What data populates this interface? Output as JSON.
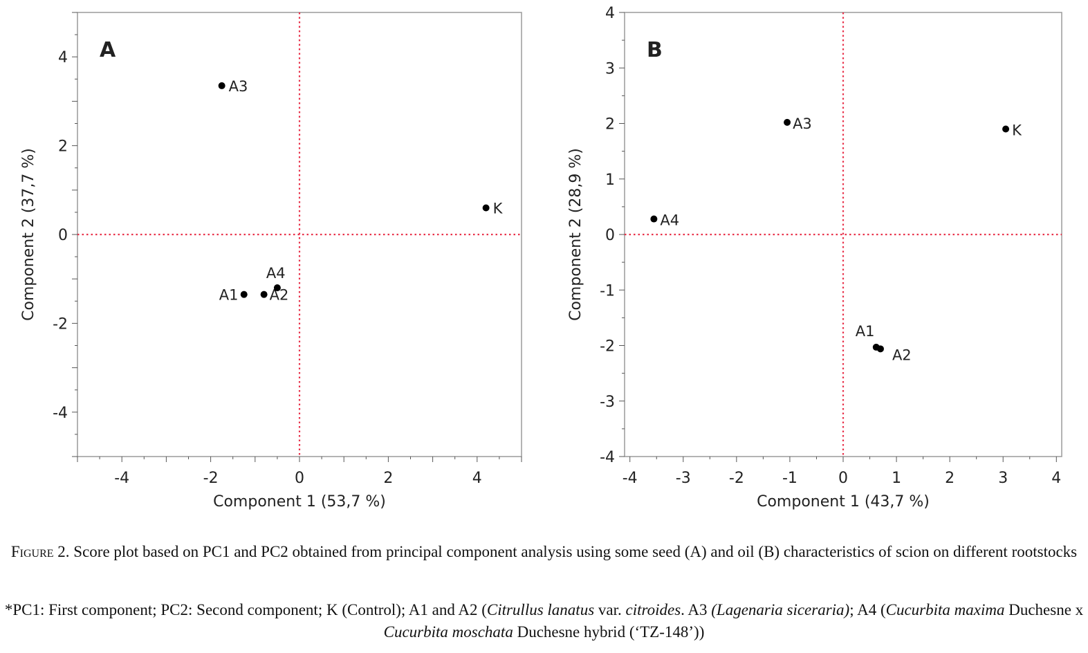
{
  "chart_data": [
    {
      "type": "scatter",
      "panel_label": "A",
      "xlabel": "Component 1 (53,7 %)",
      "ylabel": "Component 2  (37,7 %)",
      "xlim": [
        -5,
        5
      ],
      "ylim": [
        -5,
        5
      ],
      "xticks": [
        -4,
        -2,
        0,
        2,
        4
      ],
      "yticks": [
        -4,
        -2,
        0,
        2,
        4
      ],
      "reference_lines": {
        "x": 0,
        "y": 0,
        "color": "#e8314a",
        "style": "dotted"
      },
      "points": [
        {
          "label": "A3",
          "x": -1.75,
          "y": 3.35
        },
        {
          "label": "K",
          "x": 4.2,
          "y": 0.6
        },
        {
          "label": "A1",
          "x": -1.25,
          "y": -1.35
        },
        {
          "label": "A2",
          "x": -0.8,
          "y": -1.35
        },
        {
          "label": "A4",
          "x": -0.5,
          "y": -1.2
        }
      ]
    },
    {
      "type": "scatter",
      "panel_label": "B",
      "xlabel": "Component 1  (43,7 %)",
      "ylabel": "Component 2  (28,9 %)",
      "xlim": [
        -4.1,
        4.1
      ],
      "ylim": [
        -4,
        4
      ],
      "xticks": [
        -4,
        -3,
        -2,
        -1,
        0,
        1,
        2,
        3,
        4
      ],
      "yticks": [
        -4,
        -3,
        -2,
        -1,
        0,
        1,
        2,
        3,
        4
      ],
      "reference_lines": {
        "x": 0,
        "y": 0,
        "color": "#e8314a",
        "style": "dotted"
      },
      "points": [
        {
          "label": "A3",
          "x": -1.05,
          "y": 2.02
        },
        {
          "label": "K",
          "x": 3.05,
          "y": 1.9
        },
        {
          "label": "A4",
          "x": -3.55,
          "y": 0.28
        },
        {
          "label": "A1",
          "x": 0.62,
          "y": -2.03
        },
        {
          "label": "A2",
          "x": 0.7,
          "y": -2.06
        }
      ]
    }
  ],
  "caption": {
    "figure_prefix": "Figure 2.",
    "text": " Score plot based on PC1 and PC2 obtained from principal component analysis using some seed (A) and oil (B) characteristics of scion on different rootstocks"
  },
  "footnote": {
    "p1": "*PC1: First component; PC2: Second component; K (Control); A1 and A2 (",
    "i1": "Citrullus lanatus",
    "p2": " var. ",
    "i2": "citroides",
    "p3": ". A3 ",
    "i3": "(Lagenaria siceraria)",
    "p4": "; A4 (",
    "i4": "Cucurbita maxima",
    "p5": " Duchesne x ",
    "i5": "Cucurbita moschata",
    "p6": " Duchesne hybrid (‘TZ-148’))"
  }
}
